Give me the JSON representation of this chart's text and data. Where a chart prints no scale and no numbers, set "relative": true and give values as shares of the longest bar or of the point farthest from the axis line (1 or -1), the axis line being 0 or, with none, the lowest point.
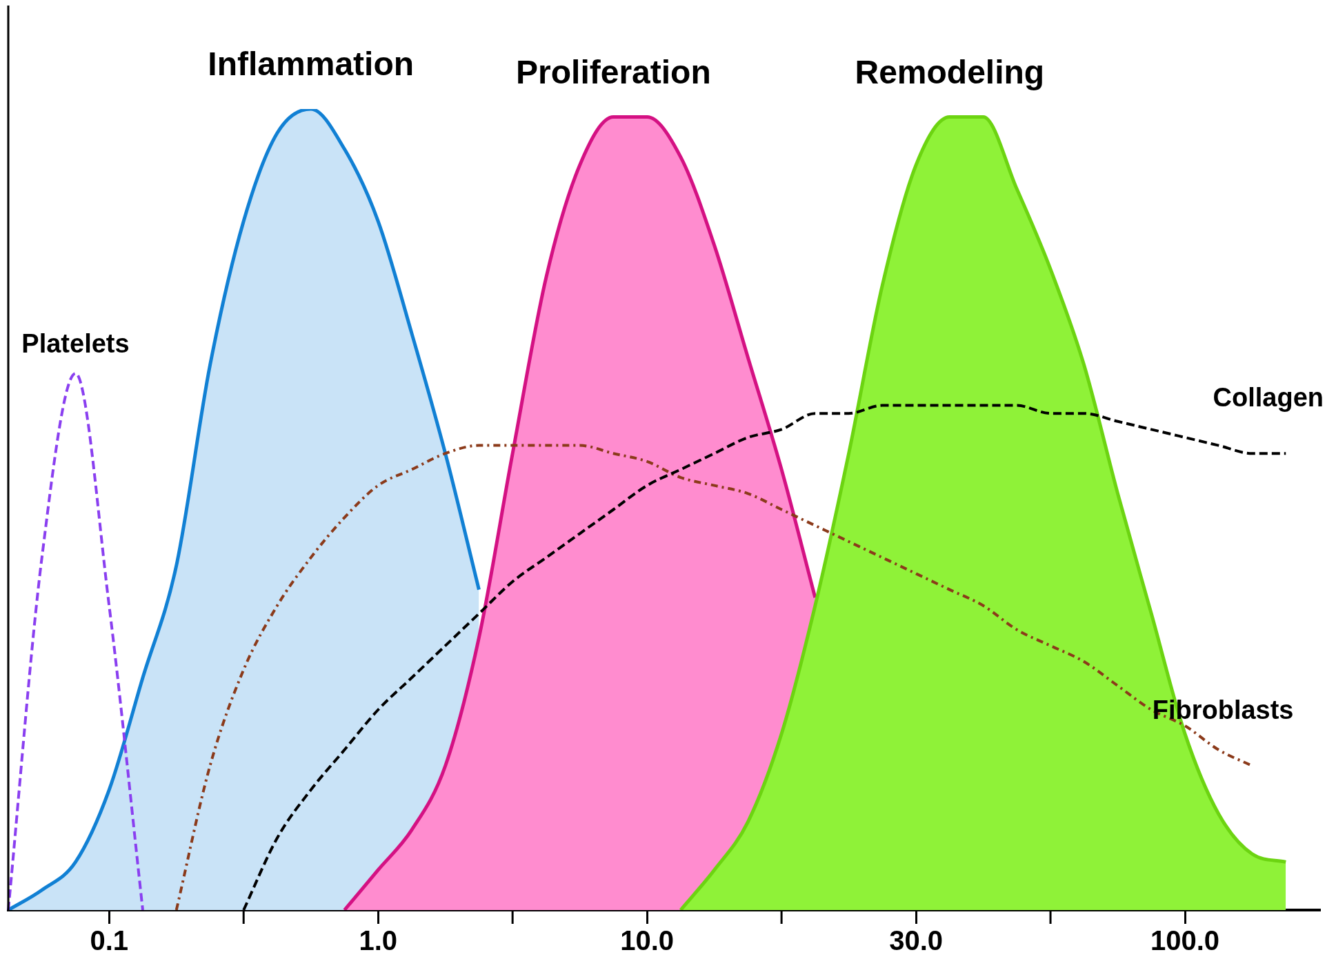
{
  "chart_data": {
    "type": "line",
    "relative": true,
    "legend": false,
    "grid": false,
    "categories": [
      null,
      null,
      null,
      "0.1",
      null,
      null,
      null,
      null,
      null,
      null,
      null,
      "1.0",
      null,
      null,
      null,
      null,
      null,
      null,
      null,
      "10.0",
      null,
      null,
      null,
      null,
      null,
      null,
      null,
      "30.0",
      null,
      null,
      null,
      null,
      null,
      null,
      null,
      "100.0",
      null,
      null,
      null,
      null
    ],
    "series": [
      {
        "name": "Inflammation",
        "type": "area",
        "color": "#c9e3f7",
        "values": [
          0,
          0.025,
          0.06,
          0.15,
          0.29,
          0.43,
          0.68,
          0.86,
          0.97,
          1,
          0.95,
          0.86,
          0.72,
          0.57,
          0.4,
          null,
          null,
          null,
          null,
          null,
          null,
          null,
          null,
          null,
          null,
          null,
          null,
          null,
          null,
          null,
          null,
          null,
          null,
          null,
          null,
          null,
          null,
          null,
          null,
          null
        ]
      },
      {
        "name": "Proliferation",
        "type": "area",
        "color": "#ff8ccf",
        "values": [
          null,
          null,
          null,
          null,
          null,
          null,
          null,
          null,
          null,
          null,
          0,
          0.05,
          0.1,
          0.18,
          0.34,
          0.57,
          0.79,
          0.93,
          0.99,
          0.99,
          0.94,
          0.83,
          0.69,
          0.55,
          0.39,
          null,
          null,
          null,
          null,
          null,
          null,
          null,
          null,
          null,
          null,
          null,
          null,
          null,
          null,
          null
        ]
      },
      {
        "name": "Remodeling",
        "type": "area",
        "color": "#8ff238",
        "values": [
          null,
          null,
          null,
          null,
          null,
          null,
          null,
          null,
          null,
          null,
          null,
          null,
          null,
          null,
          null,
          null,
          null,
          null,
          null,
          null,
          0,
          0.05,
          0.11,
          0.22,
          0.38,
          0.57,
          0.78,
          0.93,
          0.99,
          0.99,
          0.9,
          0.8,
          0.68,
          0.52,
          0.37,
          0.22,
          0.12,
          0.07,
          0.06,
          null
        ]
      },
      {
        "name": "Platelets",
        "type": "line",
        "color": "#8a3ff0",
        "line_style": "dashed",
        "values": [
          0,
          0.44,
          0.67,
          0.38,
          0,
          null,
          null,
          null,
          null,
          null,
          null,
          null,
          null,
          null,
          null,
          null,
          null,
          null,
          null,
          null,
          null,
          null,
          null,
          null,
          null,
          null,
          null,
          null,
          null,
          null,
          null,
          null,
          null,
          null,
          null,
          null,
          null,
          null,
          null,
          null
        ]
      },
      {
        "name": "Fibroblasts",
        "type": "line",
        "color": "#8b3a1a",
        "line_style": "dotted",
        "values": [
          null,
          null,
          null,
          null,
          null,
          0,
          0.18,
          0.3,
          0.38,
          0.44,
          0.49,
          0.53,
          0.55,
          0.57,
          0.58,
          0.58,
          0.58,
          0.58,
          0.57,
          0.56,
          0.54,
          0.53,
          0.52,
          0.5,
          0.48,
          0.46,
          0.44,
          0.42,
          0.4,
          0.38,
          0.35,
          0.33,
          0.31,
          0.28,
          0.25,
          0.23,
          0.2,
          0.18,
          null,
          null
        ]
      },
      {
        "name": "Collagen",
        "type": "line",
        "color": "#000000",
        "line_style": "dashed",
        "values": [
          null,
          null,
          null,
          null,
          null,
          null,
          null,
          0,
          0.09,
          0.15,
          0.2,
          0.25,
          0.29,
          0.33,
          0.37,
          0.41,
          0.44,
          0.47,
          0.5,
          0.53,
          0.55,
          0.57,
          0.59,
          0.6,
          0.62,
          0.62,
          0.63,
          0.63,
          0.63,
          0.63,
          0.63,
          0.62,
          0.62,
          0.61,
          0.6,
          0.59,
          0.58,
          0.57,
          0.57,
          null
        ]
      }
    ]
  }
}
